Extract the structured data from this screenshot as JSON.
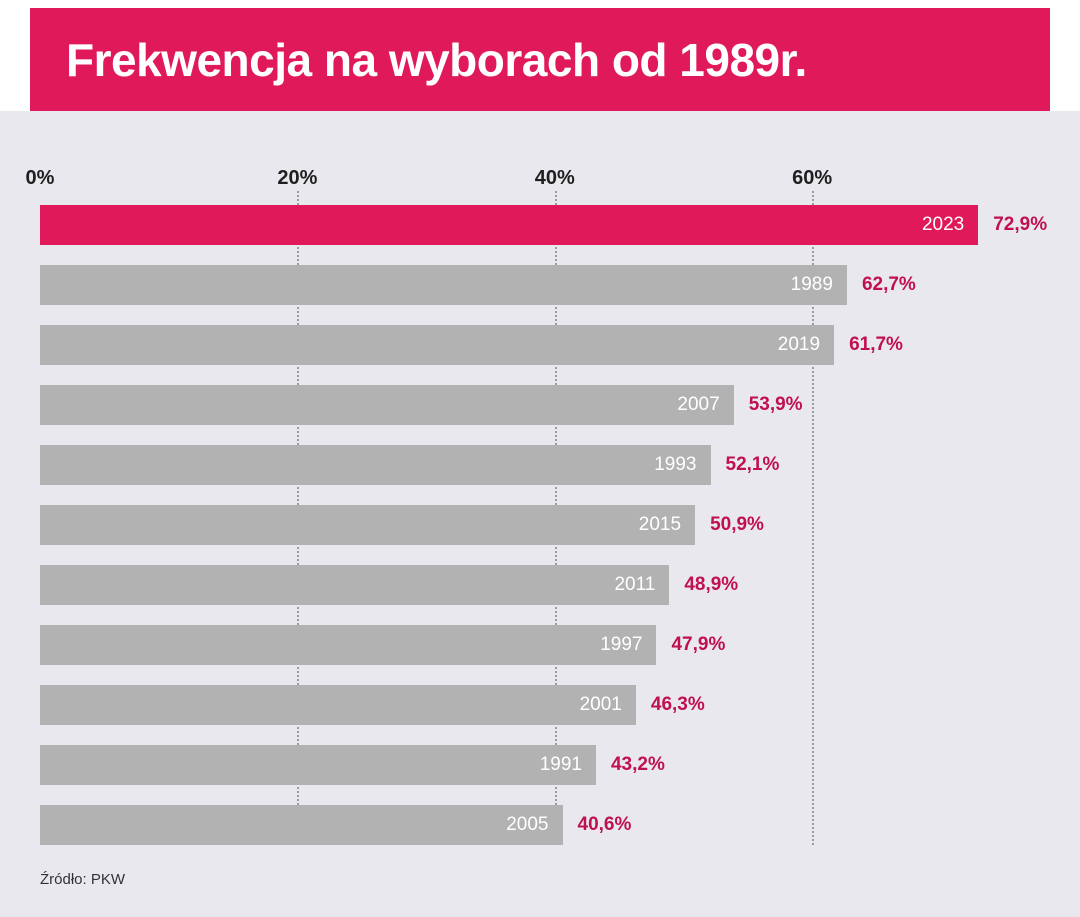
{
  "header": {
    "title": "Frekwencja na wyborach od 1989r.",
    "background_color": "#e01a5a",
    "title_color": "#ffffff"
  },
  "chart_data": {
    "type": "bar",
    "orientation": "horizontal",
    "title": "Frekwencja na wyborach od 1989r.",
    "categories": [
      "2023",
      "1989",
      "2019",
      "2007",
      "1993",
      "2015",
      "2011",
      "1997",
      "2001",
      "1991",
      "2005"
    ],
    "values": [
      72.9,
      62.7,
      61.7,
      53.9,
      52.1,
      50.9,
      48.9,
      47.9,
      46.3,
      43.2,
      40.6
    ],
    "value_labels": [
      "72,9%",
      "62,7%",
      "61,7%",
      "53,9%",
      "52,1%",
      "50,9%",
      "48,9%",
      "47,9%",
      "46,3%",
      "43,2%",
      "40,6%"
    ],
    "x_ticks": [
      "0%",
      "20%",
      "40%",
      "60%"
    ],
    "x_tick_values": [
      0,
      20,
      40,
      60
    ],
    "xlim": [
      0,
      77.7
    ],
    "grid": "dotted-vertical",
    "legend": "none",
    "highlight_index": 0,
    "highlight_color": "#e01a5a",
    "bar_color": "#b2b2b2",
    "year_label_color": "#ffffff",
    "value_label_color": "#c11050",
    "background_color": "#e8e8ee"
  },
  "source": {
    "label": "Źródło: PKW"
  }
}
